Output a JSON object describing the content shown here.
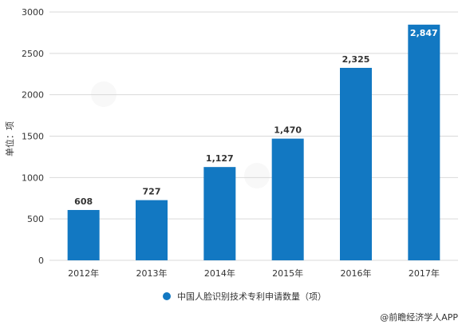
{
  "chart_data": {
    "type": "bar",
    "categories": [
      "2012年",
      "2013年",
      "2014年",
      "2015年",
      "2016年",
      "2017年"
    ],
    "series": [
      {
        "name": "中国人脸识别技术专利申请数量（项）",
        "values": [
          608,
          727,
          1127,
          1470,
          2325,
          2847
        ],
        "value_labels": [
          "608",
          "727",
          "1,127",
          "1,470",
          "2,325",
          "2,847"
        ],
        "color": "#1278C2"
      }
    ],
    "ylabel": "单位：项",
    "ylim": [
      0,
      3000
    ],
    "yticks": [
      0,
      500,
      1000,
      1500,
      2000,
      2500,
      3000
    ],
    "ytick_labels": [
      "0",
      "500",
      "1000",
      "1500",
      "2000",
      "2500",
      "3000"
    ],
    "grid": true,
    "gridline_color": "#D9D9D9",
    "legend_position": "bottom"
  },
  "source": "@前瞻经济学人APP"
}
